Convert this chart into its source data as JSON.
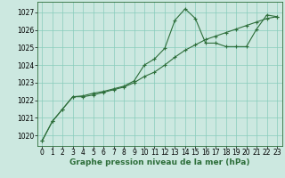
{
  "background_color": "#cce8e0",
  "grid_color": "#88ccbb",
  "line_color": "#2d6e3a",
  "xlabel": "Graphe pression niveau de la mer (hPa)",
  "xlim": [
    -0.5,
    23.5
  ],
  "ylim": [
    1019.4,
    1027.6
  ],
  "yticks": [
    1020,
    1021,
    1022,
    1023,
    1024,
    1025,
    1026,
    1027
  ],
  "xticks": [
    0,
    1,
    2,
    3,
    4,
    5,
    6,
    7,
    8,
    9,
    10,
    11,
    12,
    13,
    14,
    15,
    16,
    17,
    18,
    19,
    20,
    21,
    22,
    23
  ],
  "series1_x": [
    0,
    1,
    2,
    3,
    4,
    5,
    6,
    7,
    8,
    9,
    10,
    11,
    12,
    13,
    14,
    15,
    16,
    17,
    18,
    19,
    20,
    21,
    22,
    23
  ],
  "series1_y": [
    1019.7,
    1020.8,
    1021.5,
    1022.2,
    1022.25,
    1022.4,
    1022.5,
    1022.65,
    1022.8,
    1023.1,
    1024.0,
    1024.35,
    1024.95,
    1026.55,
    1027.2,
    1026.65,
    1025.25,
    1025.25,
    1025.05,
    1025.05,
    1025.05,
    1026.05,
    1026.85,
    1026.75
  ],
  "series2_x": [
    0,
    1,
    2,
    3,
    4,
    5,
    6,
    7,
    8,
    9,
    10,
    11,
    12,
    13,
    14,
    15,
    16,
    17,
    18,
    19,
    20,
    21,
    22,
    23
  ],
  "series2_y": [
    1019.7,
    1020.8,
    1021.5,
    1022.2,
    1022.2,
    1022.3,
    1022.45,
    1022.6,
    1022.75,
    1023.0,
    1023.35,
    1023.6,
    1024.0,
    1024.45,
    1024.85,
    1025.15,
    1025.45,
    1025.65,
    1025.85,
    1026.05,
    1026.25,
    1026.45,
    1026.65,
    1026.75
  ],
  "tick_fontsize": 5.5,
  "xlabel_fontsize": 6.5,
  "lw": 0.8,
  "marker_size": 3.0
}
